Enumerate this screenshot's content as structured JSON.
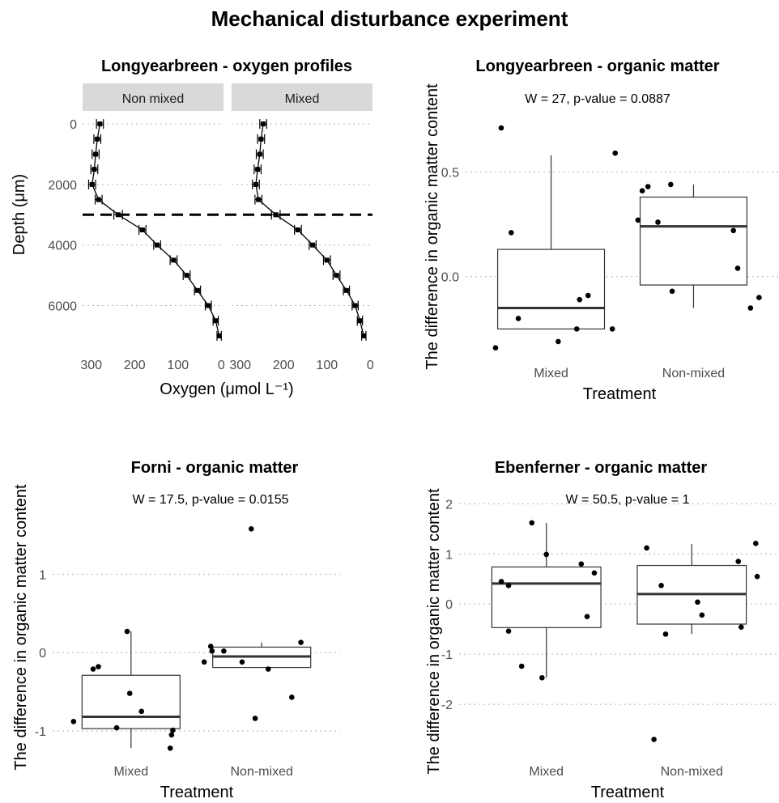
{
  "figure": {
    "title": "Mechanical disturbance experiment"
  },
  "chart_data": [
    {
      "id": "oxygen",
      "type": "line",
      "title": "Longyearbreen - oxygen profiles",
      "xlabel": "Oxygen (μmol L⁻¹)",
      "ylabel": "Depth (μm)",
      "x_reversed": true,
      "y_reversed": true,
      "xlim": [
        320,
        -5
      ],
      "ylim": [
        -350,
        7350
      ],
      "x_ticks": [
        300,
        200,
        100,
        0
      ],
      "y_ticks": [
        0,
        2000,
        4000,
        6000
      ],
      "grid": "horizontal dotted",
      "reference_line": {
        "depth": 3000,
        "style": "dashed"
      },
      "facets": [
        {
          "label": "Non mixed",
          "depth": [
            0,
            500,
            1000,
            1500,
            2000,
            2500,
            3000,
            3500,
            4000,
            4500,
            5000,
            5500,
            6000,
            6500,
            7000
          ],
          "oxygen": [
            280,
            286,
            290,
            293,
            298,
            283,
            238,
            182,
            148,
            110,
            80,
            55,
            30,
            13,
            5
          ],
          "error": [
            8,
            8,
            8,
            8,
            8,
            8,
            10,
            8,
            8,
            8,
            8,
            7,
            7,
            6,
            5
          ]
        },
        {
          "label": "Mixed",
          "depth": [
            0,
            500,
            1000,
            1500,
            2000,
            2500,
            3000,
            3500,
            4000,
            4500,
            5000,
            5500,
            6000,
            6500,
            7000
          ],
          "oxygen": [
            247,
            252,
            255,
            260,
            264,
            258,
            218,
            167,
            133,
            100,
            78,
            55,
            35,
            24,
            15
          ],
          "error": [
            8,
            8,
            8,
            8,
            8,
            8,
            10,
            8,
            8,
            8,
            8,
            7,
            7,
            6,
            5
          ]
        }
      ]
    },
    {
      "id": "longyearbreen",
      "type": "box",
      "title": "Longyearbreen - organic matter",
      "subtitle": "W = 27, p-value = 0.0887",
      "xlabel": "Treatment",
      "ylabel": "The difference in organic matter content",
      "ylim": [
        -0.38,
        0.78
      ],
      "y_ticks": [
        0.0,
        0.5
      ],
      "y_tick_labels": [
        "0.0",
        "0.5"
      ],
      "grid": "horizontal dotted",
      "categories": [
        "Mixed",
        "Non-mixed"
      ],
      "boxes": [
        {
          "q1": -0.25,
          "median": -0.15,
          "q3": 0.13,
          "whisker_low": -0.25,
          "whisker_high": 0.58
        },
        {
          "q1": -0.04,
          "median": 0.24,
          "q3": 0.38,
          "whisker_low": -0.15,
          "whisker_high": 0.44
        }
      ],
      "points": [
        [
          {
            "x": 0.65,
            "y": 0.71
          },
          {
            "x": 0.72,
            "y": 0.21
          },
          {
            "x": 0.77,
            "y": -0.2
          },
          {
            "x": 1.05,
            "y": -0.31
          },
          {
            "x": 1.18,
            "y": -0.25
          },
          {
            "x": 1.2,
            "y": -0.11
          },
          {
            "x": 1.26,
            "y": -0.09
          },
          {
            "x": 1.45,
            "y": 0.59
          },
          {
            "x": 1.43,
            "y": -0.25
          },
          {
            "x": 0.61,
            "y": -0.34
          }
        ],
        [
          {
            "x": 1.61,
            "y": 0.27
          },
          {
            "x": 1.64,
            "y": 0.41
          },
          {
            "x": 1.68,
            "y": 0.43
          },
          {
            "x": 1.75,
            "y": 0.26
          },
          {
            "x": 1.84,
            "y": 0.44
          },
          {
            "x": 1.85,
            "y": -0.07
          },
          {
            "x": 2.28,
            "y": 0.22
          },
          {
            "x": 2.31,
            "y": 0.04
          },
          {
            "x": 2.4,
            "y": -0.15
          },
          {
            "x": 2.46,
            "y": -0.1
          }
        ]
      ]
    },
    {
      "id": "forni",
      "type": "box",
      "title": "Forni - organic matter",
      "subtitle": "W = 17.5, p-value = 0.0155",
      "xlabel": "Treatment",
      "ylabel": "The difference in organic matter content",
      "ylim": [
        -1.3,
        1.8
      ],
      "y_ticks": [
        -1,
        0,
        1
      ],
      "y_tick_labels": [
        "-1",
        "0",
        "1"
      ],
      "grid": "horizontal dotted",
      "categories": [
        "Mixed",
        "Non-mixed"
      ],
      "boxes": [
        {
          "q1": -0.97,
          "median": -0.82,
          "q3": -0.29,
          "whisker_low": -1.22,
          "whisker_high": 0.27
        },
        {
          "q1": -0.19,
          "median": -0.05,
          "q3": 0.07,
          "whisker_low": -0.19,
          "whisker_high": 0.13
        }
      ],
      "points": [
        [
          {
            "x": 0.56,
            "y": -0.88
          },
          {
            "x": 0.71,
            "y": -0.21
          },
          {
            "x": 0.75,
            "y": -0.18
          },
          {
            "x": 0.89,
            "y": -0.96
          },
          {
            "x": 0.97,
            "y": 0.27
          },
          {
            "x": 0.99,
            "y": -0.52
          },
          {
            "x": 1.08,
            "y": -0.75
          },
          {
            "x": 1.31,
            "y": -1.05
          },
          {
            "x": 1.32,
            "y": -0.99
          },
          {
            "x": 1.3,
            "y": -1.22
          }
        ],
        [
          {
            "x": 1.56,
            "y": -0.12
          },
          {
            "x": 1.61,
            "y": 0.08
          },
          {
            "x": 1.62,
            "y": 0.02
          },
          {
            "x": 1.71,
            "y": 0.02
          },
          {
            "x": 1.85,
            "y": -0.12
          },
          {
            "x": 1.92,
            "y": 1.58
          },
          {
            "x": 1.95,
            "y": -0.84
          },
          {
            "x": 2.05,
            "y": -0.21
          },
          {
            "x": 2.23,
            "y": -0.57
          },
          {
            "x": 2.3,
            "y": 0.13
          }
        ]
      ]
    },
    {
      "id": "ebenferner",
      "type": "box",
      "title": "Ebenferner - organic matter",
      "subtitle": "W = 50.5, p-value = 1",
      "xlabel": "Treatment",
      "ylabel": "The difference in organic matter content",
      "ylim": [
        -3.0,
        2.2
      ],
      "y_ticks": [
        -2,
        -1,
        0,
        1,
        2
      ],
      "y_tick_labels": [
        "-2",
        "-1",
        "0",
        "1",
        "2"
      ],
      "grid": "horizontal dotted",
      "categories": [
        "Mixed",
        "Non-mixed"
      ],
      "boxes": [
        {
          "q1": -0.47,
          "median": 0.41,
          "q3": 0.74,
          "whisker_low": -1.47,
          "whisker_high": 1.62
        },
        {
          "q1": -0.4,
          "median": 0.2,
          "q3": 0.77,
          "whisker_low": -0.6,
          "whisker_high": 1.2
        }
      ],
      "points": [
        [
          {
            "x": 0.69,
            "y": 0.45
          },
          {
            "x": 0.74,
            "y": -0.54
          },
          {
            "x": 0.74,
            "y": 0.37
          },
          {
            "x": 0.83,
            "y": -1.24
          },
          {
            "x": 0.9,
            "y": 1.62
          },
          {
            "x": 0.97,
            "y": -1.47
          },
          {
            "x": 1.0,
            "y": 0.99
          },
          {
            "x": 1.24,
            "y": 0.8
          },
          {
            "x": 1.28,
            "y": -0.25
          },
          {
            "x": 1.33,
            "y": 0.62
          }
        ],
        [
          {
            "x": 1.69,
            "y": 1.12
          },
          {
            "x": 1.74,
            "y": -2.7
          },
          {
            "x": 1.79,
            "y": 0.37
          },
          {
            "x": 1.82,
            "y": -0.6
          },
          {
            "x": 2.04,
            "y": 0.04
          },
          {
            "x": 2.07,
            "y": -0.22
          },
          {
            "x": 2.32,
            "y": 0.85
          },
          {
            "x": 2.34,
            "y": -0.46
          },
          {
            "x": 2.44,
            "y": 1.21
          },
          {
            "x": 2.45,
            "y": 0.55
          }
        ]
      ]
    }
  ]
}
